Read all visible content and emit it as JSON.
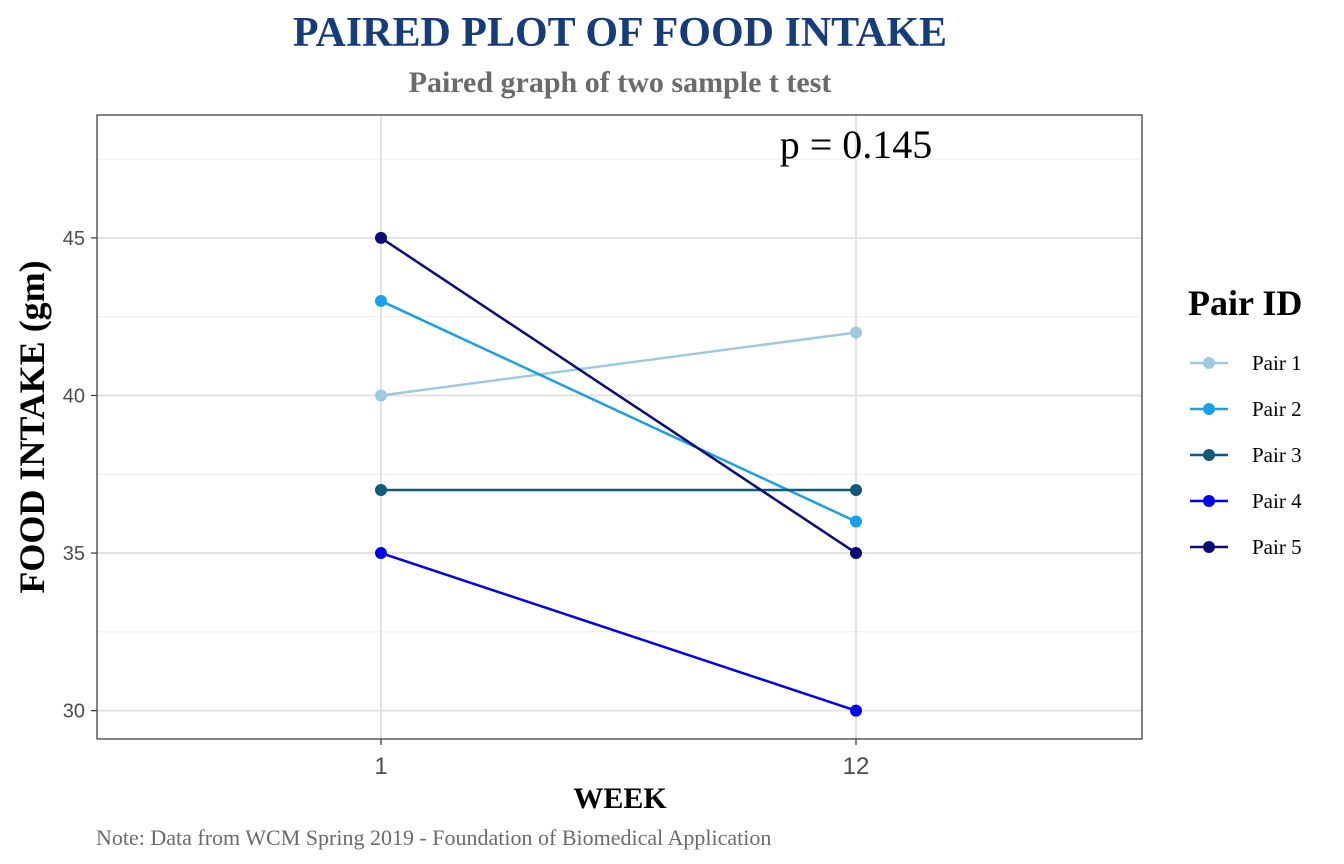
{
  "chart_data": {
    "type": "line",
    "title": "PAIRED PLOT OF FOOD INTAKE",
    "subtitle": "Paired graph of two sample t test",
    "xlabel": "WEEK",
    "ylabel": "FOOD INTAKE (gm)",
    "caption": "Note: Data from WCM Spring 2019 - Foundation of Biomedical Application",
    "annotation": "p = 0.145",
    "categories": [
      "1",
      "12"
    ],
    "ylim": [
      29.1,
      48.9
    ],
    "yticks": [
      30,
      35,
      40,
      45
    ],
    "grid": true,
    "legend_title": "Pair ID",
    "legend_position": "right",
    "series": [
      {
        "name": "Pair 1",
        "values": [
          40,
          42
        ],
        "color": "#9ecae1"
      },
      {
        "name": "Pair 2",
        "values": [
          43,
          36
        ],
        "color": "#1aa0e6"
      },
      {
        "name": "Pair 3",
        "values": [
          37,
          37
        ],
        "color": "#0f5a7a"
      },
      {
        "name": "Pair 4",
        "values": [
          35,
          30
        ],
        "color": "#0000ee"
      },
      {
        "name": "Pair 5",
        "values": [
          45,
          35
        ],
        "color": "#0a0a78"
      }
    ],
    "colors": {
      "title": "#163d7a",
      "subtitle": "#6b6b6b",
      "tick_text": "#4d4d4d",
      "caption": "#6b6b6b"
    }
  }
}
